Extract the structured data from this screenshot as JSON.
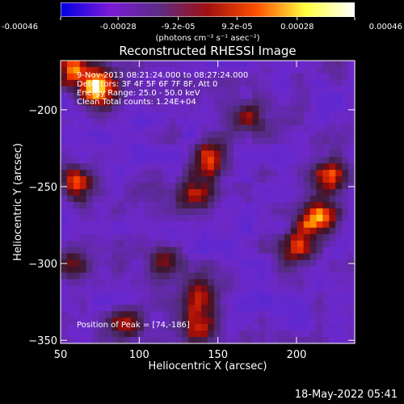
{
  "chart_data": {
    "type": "heatmap",
    "title": "Reconstructed RHESSI Image",
    "xlabel": "Heliocentric X (arcsec)",
    "ylabel": "Heliocentric Y (arcsec)",
    "xlim": [
      50,
      237
    ],
    "ylim": [
      -352,
      -168
    ],
    "xticks": [
      50,
      100,
      150,
      200
    ],
    "yticks": [
      -200,
      -250,
      -300,
      -350
    ],
    "colorbar": {
      "range": [
        -0.00046,
        0.00046
      ],
      "tick_labels": [
        "-0.00046",
        "-0.00028",
        "-9.2e-05",
        "9.2e-05",
        "0.00028",
        "0.00046"
      ],
      "units": "(photons cm⁻² s⁻¹ asec⁻²)",
      "colors": [
        "#0000e0",
        "#7a1ad8",
        "#5c2c86",
        "#a01010",
        "#ff5000",
        "#ffff40",
        "#ffffff"
      ]
    },
    "annotations": [
      "9-Nov-2013 08:21:24.000 to 08:27:24.000",
      "Detectors: 3F 4F 5F 6F 7F 8F, Att 0",
      "Energy Range: 25.0 - 50.0 keV",
      "Clean     Total counts: 1.24E+04"
    ],
    "peak_label": "Position of Peak = [74,-186]",
    "sources": [
      {
        "x": 74,
        "y": -186,
        "strength": 1.0
      },
      {
        "x": 58,
        "y": -172,
        "strength": 0.9
      },
      {
        "x": 213,
        "y": -270,
        "strength": 0.95
      },
      {
        "x": 200,
        "y": -290,
        "strength": 0.7
      },
      {
        "x": 222,
        "y": -245,
        "strength": 0.6
      },
      {
        "x": 145,
        "y": -232,
        "strength": 0.6
      },
      {
        "x": 135,
        "y": -255,
        "strength": 0.55
      },
      {
        "x": 140,
        "y": -320,
        "strength": 0.6
      },
      {
        "x": 118,
        "y": -300,
        "strength": 0.55
      },
      {
        "x": 138,
        "y": -340,
        "strength": 0.6
      },
      {
        "x": 60,
        "y": -248,
        "strength": 0.55
      },
      {
        "x": 57,
        "y": -300,
        "strength": 0.5
      },
      {
        "x": 92,
        "y": -340,
        "strength": 0.45
      },
      {
        "x": 170,
        "y": -205,
        "strength": 0.45
      }
    ]
  },
  "footer": {
    "datetime": "18-May-2022 05:41"
  }
}
